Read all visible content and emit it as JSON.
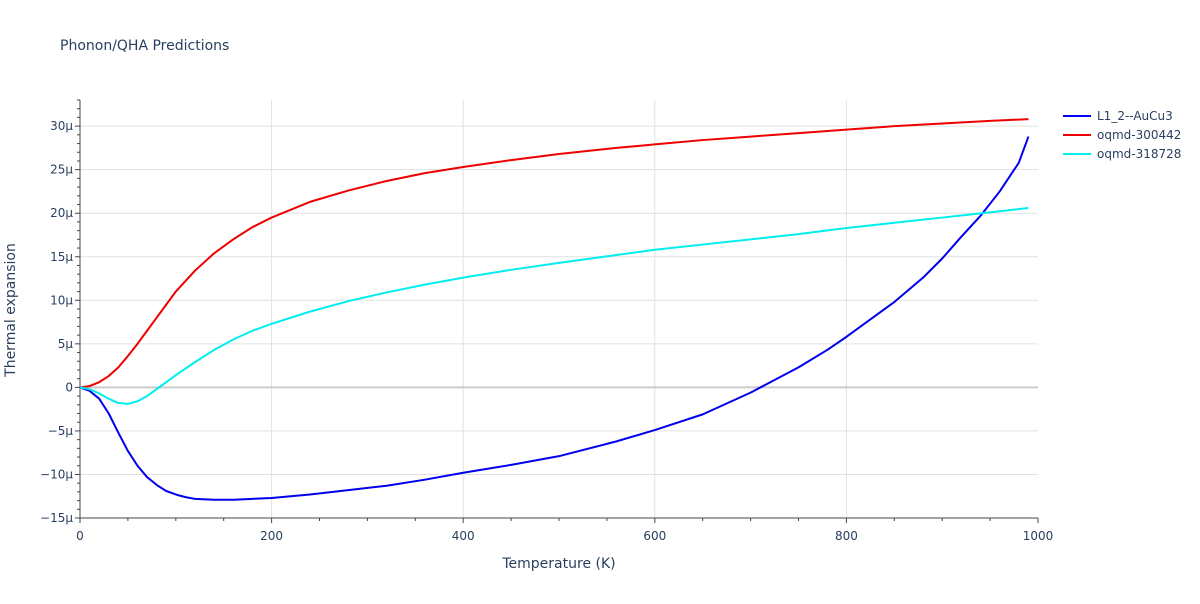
{
  "chart_data": {
    "type": "line",
    "title": "Phonon/QHA Predictions",
    "xlabel": "Temperature (K)",
    "ylabel": "Thermal expansion",
    "xlim": [
      0,
      1000
    ],
    "ylim": [
      -15,
      33
    ],
    "xticks": [
      0,
      200,
      400,
      600,
      800,
      1000
    ],
    "xtick_labels": [
      "0",
      "200",
      "400",
      "600",
      "800",
      "1000"
    ],
    "yticks": [
      -15,
      -10,
      -5,
      0,
      5,
      10,
      15,
      20,
      25,
      30
    ],
    "ytick_labels": [
      "−15μ",
      "−10μ",
      "−5μ",
      "0",
      "5μ",
      "10μ",
      "15μ",
      "20μ",
      "25μ",
      "30μ"
    ],
    "grid": true,
    "legend_position": "top-right",
    "series": [
      {
        "name": "L1_2--AuCu3",
        "color": "#0000ee",
        "x": [
          0,
          10,
          20,
          30,
          40,
          50,
          60,
          70,
          80,
          90,
          100,
          110,
          120,
          140,
          160,
          180,
          200,
          240,
          280,
          320,
          360,
          400,
          450,
          500,
          560,
          600,
          650,
          700,
          750,
          780,
          800,
          850,
          880,
          900,
          920,
          940,
          960,
          980,
          990
        ],
        "y": [
          0,
          -0.4,
          -1.3,
          -3.0,
          -5.2,
          -7.3,
          -9.0,
          -10.3,
          -11.2,
          -11.9,
          -12.3,
          -12.6,
          -12.8,
          -12.9,
          -12.9,
          -12.8,
          -12.7,
          -12.3,
          -11.8,
          -11.3,
          -10.6,
          -9.8,
          -8.9,
          -7.9,
          -6.2,
          -4.9,
          -3.1,
          -0.6,
          2.3,
          4.3,
          5.8,
          9.8,
          12.6,
          14.8,
          17.3,
          19.7,
          22.5,
          25.8,
          28.8
        ]
      },
      {
        "name": "oqmd-300442",
        "color": "#ee0000",
        "x": [
          0,
          10,
          20,
          30,
          40,
          50,
          60,
          70,
          80,
          90,
          100,
          120,
          140,
          160,
          180,
          200,
          240,
          280,
          320,
          360,
          400,
          450,
          500,
          560,
          600,
          650,
          700,
          750,
          800,
          850,
          900,
          950,
          990
        ],
        "y": [
          0,
          0.15,
          0.6,
          1.3,
          2.3,
          3.6,
          5.0,
          6.5,
          8.0,
          9.5,
          11.0,
          13.4,
          15.4,
          17.0,
          18.4,
          19.5,
          21.3,
          22.6,
          23.7,
          24.6,
          25.3,
          26.1,
          26.8,
          27.5,
          27.9,
          28.4,
          28.8,
          29.2,
          29.6,
          30.0,
          30.3,
          30.6,
          30.8
        ]
      },
      {
        "name": "oqmd-318728",
        "color": "#00eeee",
        "x": [
          0,
          10,
          20,
          30,
          40,
          50,
          60,
          70,
          80,
          90,
          100,
          120,
          140,
          160,
          180,
          200,
          240,
          280,
          320,
          360,
          400,
          450,
          500,
          560,
          600,
          650,
          700,
          750,
          800,
          850,
          900,
          950,
          990
        ],
        "y": [
          0,
          -0.2,
          -0.7,
          -1.3,
          -1.8,
          -1.9,
          -1.6,
          -1.0,
          -0.2,
          0.6,
          1.4,
          2.9,
          4.3,
          5.5,
          6.5,
          7.3,
          8.7,
          9.9,
          10.9,
          11.8,
          12.6,
          13.5,
          14.3,
          15.2,
          15.8,
          16.4,
          17.0,
          17.6,
          18.3,
          18.9,
          19.5,
          20.1,
          20.6
        ]
      }
    ]
  }
}
